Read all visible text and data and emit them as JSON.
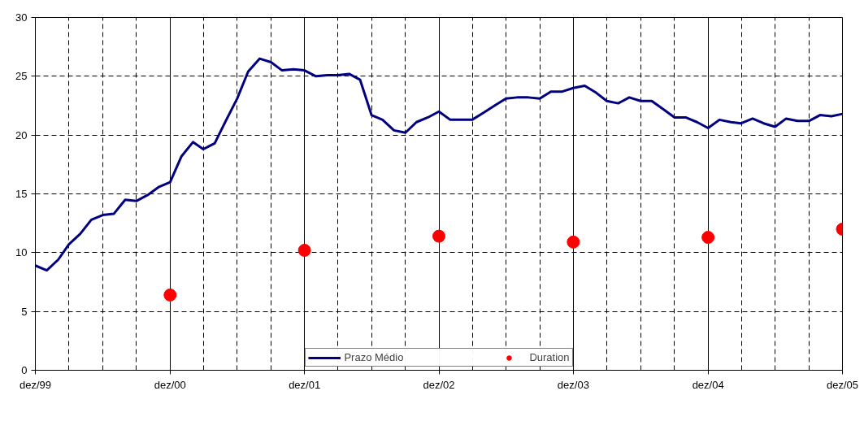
{
  "chart_data": {
    "type": "line",
    "x": [
      "1999-12",
      "2000-01",
      "2000-02",
      "2000-03",
      "2000-04",
      "2000-05",
      "2000-06",
      "2000-07",
      "2000-08",
      "2000-09",
      "2000-10",
      "2000-11",
      "2000-12",
      "2001-01",
      "2001-02",
      "2001-03",
      "2001-04",
      "2001-05",
      "2001-06",
      "2001-07",
      "2001-08",
      "2001-09",
      "2001-10",
      "2001-11",
      "2001-12",
      "2002-01",
      "2002-02",
      "2002-03",
      "2002-04",
      "2002-05",
      "2002-06",
      "2002-07",
      "2002-08",
      "2002-09",
      "2002-10",
      "2002-11",
      "2002-12",
      "2003-01",
      "2003-02",
      "2003-03",
      "2003-04",
      "2003-05",
      "2003-06",
      "2003-07",
      "2003-08",
      "2003-09",
      "2003-10",
      "2003-11",
      "2003-12",
      "2004-01",
      "2004-02",
      "2004-03",
      "2004-04",
      "2004-05",
      "2004-06",
      "2004-07",
      "2004-08",
      "2004-09",
      "2004-10",
      "2004-11",
      "2004-12",
      "2005-01",
      "2005-02",
      "2005-03",
      "2005-04",
      "2005-05",
      "2005-06",
      "2005-07",
      "2005-08",
      "2005-09",
      "2005-10",
      "2005-11",
      "2005-12"
    ],
    "series": [
      {
        "name": "Prazo Médio",
        "color": "#000080",
        "marker": "none",
        "line_style": "solid",
        "values": [
          8.9,
          8.5,
          9.4,
          10.7,
          11.6,
          12.8,
          13.2,
          13.3,
          14.5,
          14.4,
          14.9,
          15.6,
          16.0,
          18.2,
          19.4,
          18.8,
          19.3,
          21.2,
          23.1,
          25.4,
          26.5,
          26.2,
          25.5,
          25.6,
          25.5,
          25.0,
          25.1,
          25.1,
          25.2,
          24.7,
          21.7,
          21.3,
          20.4,
          20.2,
          21.1,
          21.5,
          22.0,
          21.3,
          21.3,
          21.3,
          21.9,
          22.5,
          23.1,
          23.2,
          23.2,
          23.1,
          23.7,
          23.7,
          24.0,
          24.2,
          23.6,
          22.9,
          22.7,
          23.2,
          22.9,
          22.9,
          22.2,
          21.5,
          21.5,
          21.1,
          20.6,
          21.3,
          21.1,
          21.0,
          21.4,
          21.0,
          20.7,
          21.4,
          21.2,
          21.2,
          21.7,
          21.6,
          21.8
        ]
      },
      {
        "name": "Duration",
        "type": "scatter",
        "color": "#ff0000",
        "marker": "circle",
        "x": [
          "2000-12",
          "2001-12",
          "2002-12",
          "2003-12",
          "2004-12",
          "2005-12"
        ],
        "values": [
          6.4,
          10.2,
          11.4,
          10.9,
          11.3,
          12.0
        ]
      }
    ],
    "xlim": [
      "1999-12",
      "2005-12"
    ],
    "xticks": [
      {
        "value": "1999-12",
        "label": "dez/99"
      },
      {
        "value": "2000-12",
        "label": "dez/00"
      },
      {
        "value": "2001-12",
        "label": "dez/01"
      },
      {
        "value": "2002-12",
        "label": "dez/02"
      },
      {
        "value": "2003-12",
        "label": "dez/03"
      },
      {
        "value": "2004-12",
        "label": "dez/04"
      },
      {
        "value": "2005-12",
        "label": "dez/05"
      }
    ],
    "ylim": [
      0,
      30
    ],
    "yticks": [
      0,
      5,
      10,
      15,
      20,
      25,
      30
    ],
    "grid": true,
    "legend": "bottom"
  }
}
